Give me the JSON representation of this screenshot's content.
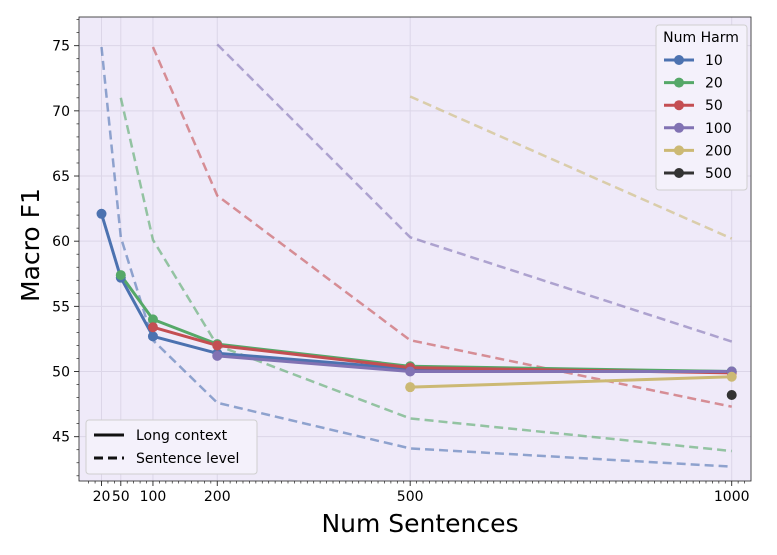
{
  "chart_data": {
    "type": "line",
    "xlabel": "Num Sentences",
    "ylabel": "Macro F1",
    "xlim": [
      -15,
      1030
    ],
    "ylim": [
      41.6,
      77.2
    ],
    "xticks": [
      20,
      50,
      100,
      200,
      500,
      1000
    ],
    "xtick_labels": [
      "20",
      "50",
      "100",
      "200",
      "500",
      "1000"
    ],
    "yticks": [
      45,
      50,
      55,
      60,
      65,
      70,
      75
    ],
    "grid": true,
    "legend_title": "Num Harm",
    "legend_placement": "top-right",
    "style_legend_placement": "bottom-left",
    "style_legend": [
      {
        "label": "Long context",
        "dash": "solid"
      },
      {
        "label": "Sentence level",
        "dash": "dashed"
      }
    ],
    "series": [
      {
        "name": "10",
        "color": "#4c72b0",
        "long_context": {
          "x": [
            20,
            50,
            100,
            200,
            500,
            1000
          ],
          "y": [
            62.1,
            57.2,
            52.7,
            51.4,
            50.2,
            50.0
          ]
        },
        "sentence_level": {
          "x": [
            20,
            50,
            100,
            200,
            500,
            1000
          ],
          "y": [
            74.9,
            60.3,
            52.4,
            47.6,
            44.1,
            42.7
          ]
        }
      },
      {
        "name": "20",
        "color": "#55a868",
        "long_context": {
          "x": [
            50,
            100,
            200,
            500,
            1000
          ],
          "y": [
            57.4,
            54.0,
            52.1,
            50.4,
            50.0
          ]
        },
        "sentence_level": {
          "x": [
            50,
            100,
            200,
            500,
            1000
          ],
          "y": [
            71.0,
            60.1,
            52.0,
            46.4,
            43.9
          ]
        }
      },
      {
        "name": "50",
        "color": "#c44e52",
        "long_context": {
          "x": [
            100,
            200,
            500,
            1000
          ],
          "y": [
            53.4,
            52.0,
            50.3,
            49.9
          ]
        },
        "sentence_level": {
          "x": [
            100,
            200,
            500,
            1000
          ],
          "y": [
            74.9,
            63.5,
            52.4,
            47.3
          ]
        }
      },
      {
        "name": "100",
        "color": "#8172b3",
        "long_context": {
          "x": [
            200,
            500,
            1000
          ],
          "y": [
            51.2,
            50.0,
            50.0
          ]
        },
        "sentence_level": {
          "x": [
            200,
            500,
            1000
          ],
          "y": [
            75.1,
            60.3,
            52.3
          ]
        }
      },
      {
        "name": "200",
        "color": "#ccb974",
        "long_context": {
          "x": [
            500,
            1000
          ],
          "y": [
            48.8,
            49.6
          ]
        },
        "sentence_level": {
          "x": [
            500,
            1000
          ],
          "y": [
            71.1,
            60.2
          ]
        }
      },
      {
        "name": "500",
        "color": "#333333",
        "long_context": {
          "x": [
            1000
          ],
          "y": [
            48.2
          ]
        },
        "sentence_level": {
          "x": [],
          "y": []
        }
      }
    ]
  }
}
